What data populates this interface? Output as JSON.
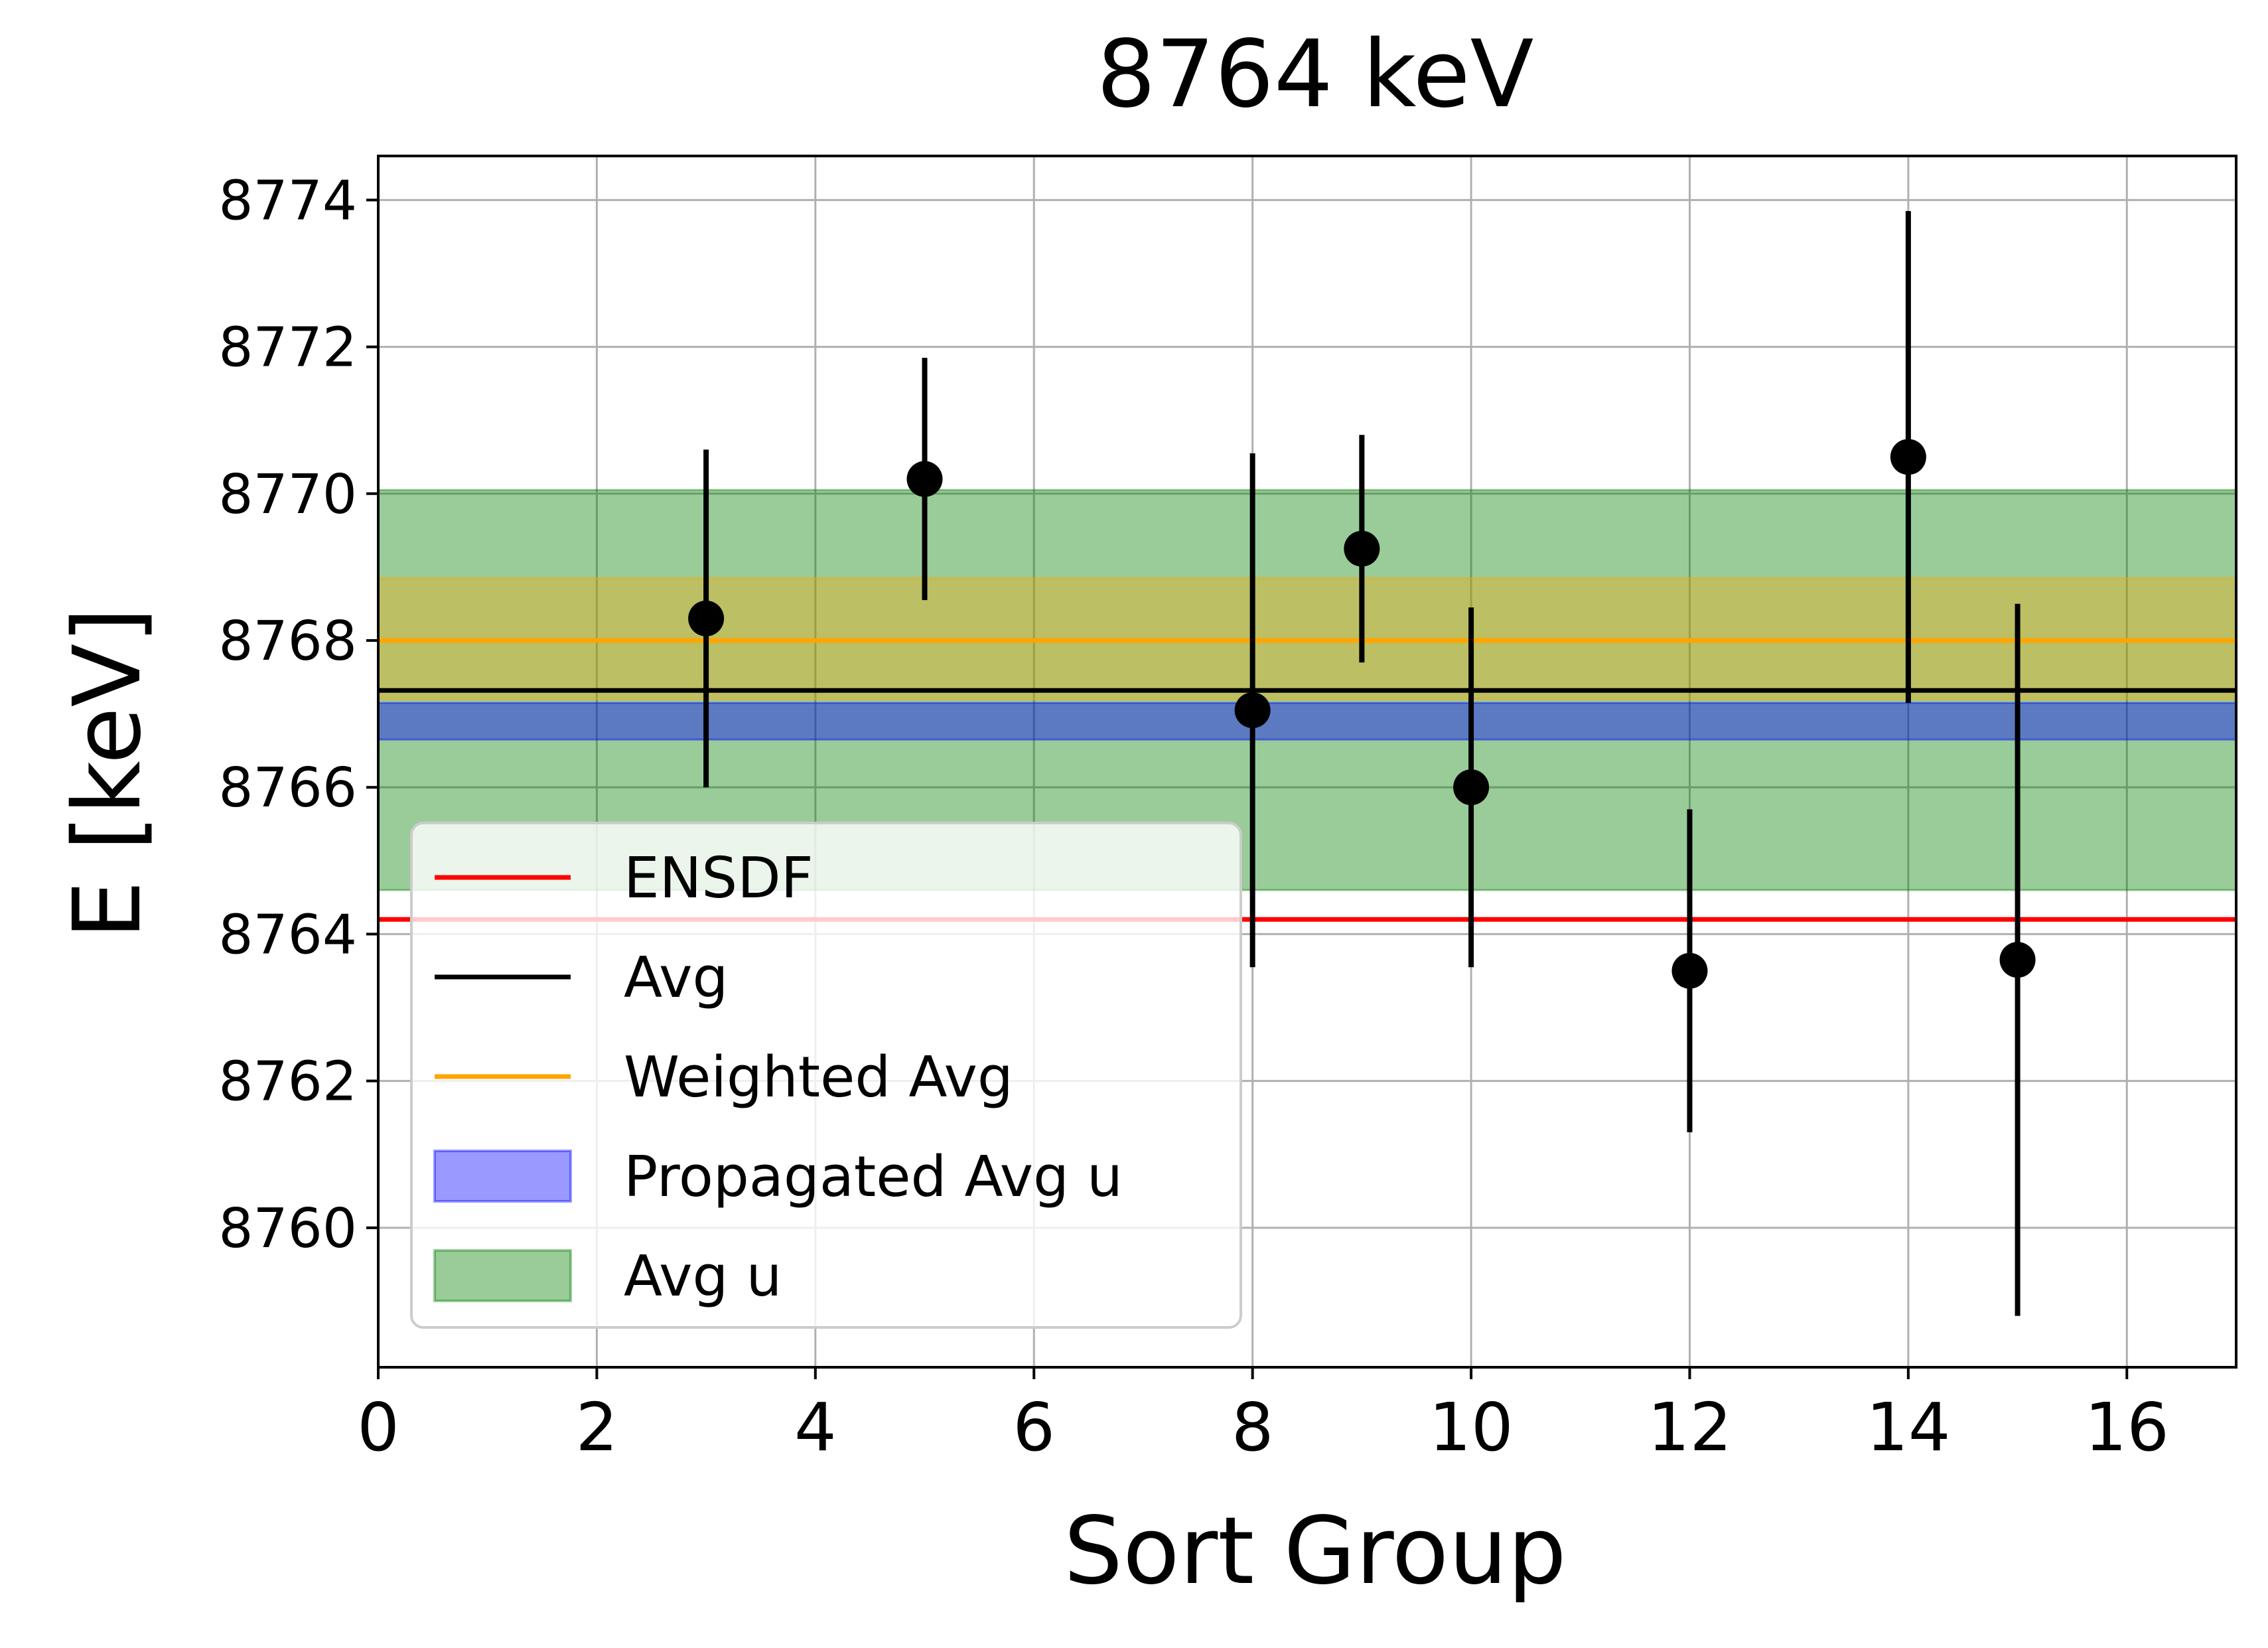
{
  "chart_data": {
    "type": "scatter",
    "title": "8764 keV",
    "xlabel": "Sort Group",
    "ylabel": "E [keV]",
    "xlim": [
      0,
      17
    ],
    "ylim": [
      8758.1,
      8774.6
    ],
    "xticks": [
      0,
      2,
      4,
      6,
      8,
      10,
      12,
      14,
      16
    ],
    "yticks": [
      8760,
      8762,
      8764,
      8766,
      8768,
      8770,
      8772,
      8774
    ],
    "grid": true,
    "legend_position": "lower-left",
    "points": [
      {
        "x": 3,
        "y": 8768.3,
        "yerr": 2.3
      },
      {
        "x": 5,
        "y": 8770.2,
        "yerr": 1.65
      },
      {
        "x": 8,
        "y": 8767.05,
        "yerr": 3.5
      },
      {
        "x": 9,
        "y": 8769.25,
        "yerr": 1.55
      },
      {
        "x": 10,
        "y": 8766.0,
        "yerr": 2.45
      },
      {
        "x": 12,
        "y": 8763.5,
        "yerr": 2.2
      },
      {
        "x": 14,
        "y": 8770.5,
        "yerr": 3.35
      },
      {
        "x": 15,
        "y": 8763.65,
        "yerr": 4.85
      }
    ],
    "lines": [
      {
        "name": "ENSDF",
        "y": 8764.2,
        "color": "#ff0000"
      },
      {
        "name": "Avg",
        "y": 8767.32,
        "color": "#000000"
      },
      {
        "name": "Weighted Avg",
        "y": 8768.0,
        "color": "#ffa500"
      }
    ],
    "bands": [
      {
        "name": "Propagated Avg u",
        "ymin": 8766.65,
        "ymax": 8767.15,
        "color": "#0000ff",
        "alpha": 0.4
      },
      {
        "name": "Avg u",
        "ymin": 8764.6,
        "ymax": 8770.05,
        "color": "#008000",
        "alpha": 0.4
      },
      {
        "name": "",
        "ymin": 8767.2,
        "ymax": 8768.85,
        "color": "#ffa500",
        "alpha": 0.35
      }
    ],
    "legend": [
      "ENSDF",
      "Avg",
      "Weighted Avg",
      "Propagated Avg u",
      "Avg u"
    ],
    "marker_color": "#000000"
  }
}
